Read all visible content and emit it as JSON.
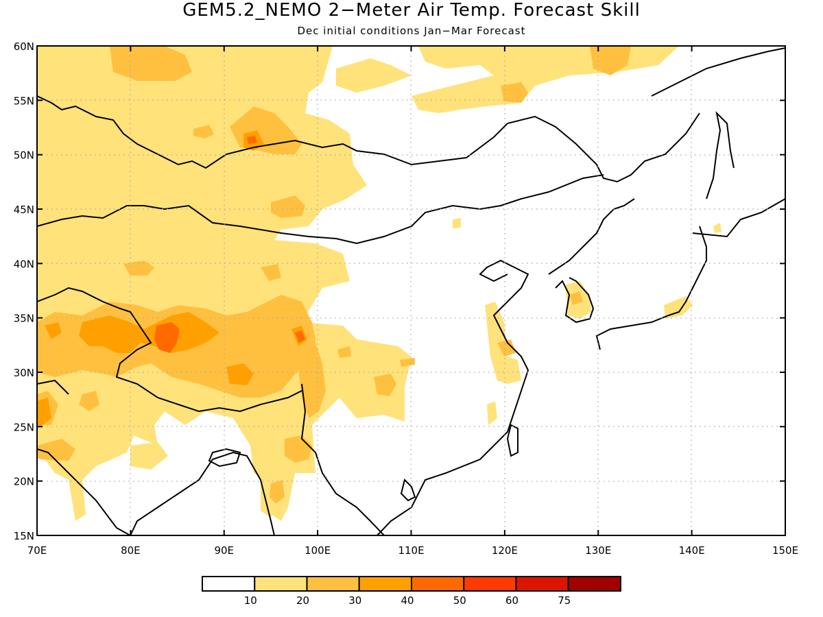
{
  "title": "GEM5.2_NEMO 2−Meter Air Temp. Forecast Skill",
  "subtitle": "Dec initial conditions  Jan−Mar Forecast",
  "map": {
    "lon_range": [
      70,
      150
    ],
    "lat_range": [
      15,
      60
    ],
    "grid_dotted": true,
    "x_ticks": [
      "70E",
      "80E",
      "90E",
      "100E",
      "110E",
      "120E",
      "130E",
      "140E",
      "150E"
    ],
    "y_ticks": [
      "15N",
      "20N",
      "25N",
      "30N",
      "35N",
      "40N",
      "45N",
      "50N",
      "55N",
      "60N"
    ]
  },
  "colorbar": {
    "colors": [
      "#ffffff",
      "#ffe27a",
      "#ffc040",
      "#ffa000",
      "#ff6a00",
      "#ff3a00",
      "#dd1500",
      "#a00000"
    ],
    "labels": [
      "10",
      "20",
      "30",
      "40",
      "50",
      "60",
      "75"
    ]
  }
}
